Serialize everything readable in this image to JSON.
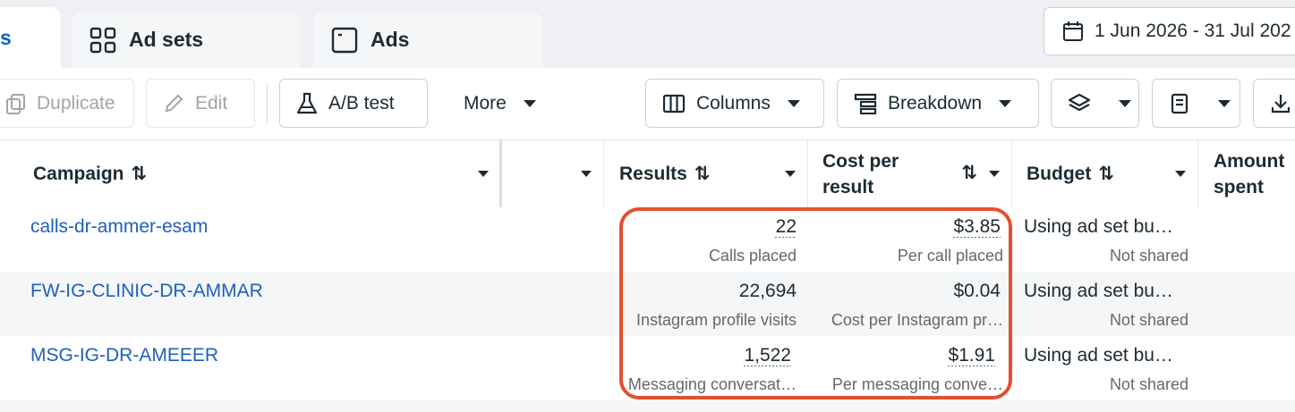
{
  "tabs": [
    "s",
    "Ad sets",
    "Ads"
  ],
  "date_range": "1 Jun 2026 - 31 Jul 202",
  "toolbar": {
    "duplicate": "Duplicate",
    "edit": "Edit",
    "ab_test": "A/B test",
    "more": "More",
    "columns": "Columns",
    "breakdown": "Breakdown"
  },
  "table": {
    "headers": {
      "campaign": "Campaign",
      "results": "Results",
      "cost_per_result": "Cost per result",
      "budget": "Budget",
      "amount_spent": "Amount spent"
    },
    "rows": [
      {
        "name": "calls-dr-ammer-esam",
        "results": "22",
        "results_label": "Calls placed",
        "cost": "$3.85",
        "cost_label": "Per call placed",
        "budget": "Using ad set bu…",
        "budget_label": "Not shared"
      },
      {
        "name": "FW-IG-CLINIC-DR-AMMAR",
        "results": "22,694",
        "results_label": "Instagram profile visits",
        "cost": "$0.04",
        "cost_label": "Cost per Instagram pr…",
        "budget": "Using ad set bu…",
        "budget_label": "Not shared"
      },
      {
        "name": "MSG-IG-DR-AMEEER",
        "results": "1,522",
        "results_label": "Messaging conversat…",
        "cost": "$1.91",
        "cost_label": "Per messaging conve…",
        "budget": "Using ad set bu…",
        "budget_label": "Not shared"
      }
    ]
  }
}
